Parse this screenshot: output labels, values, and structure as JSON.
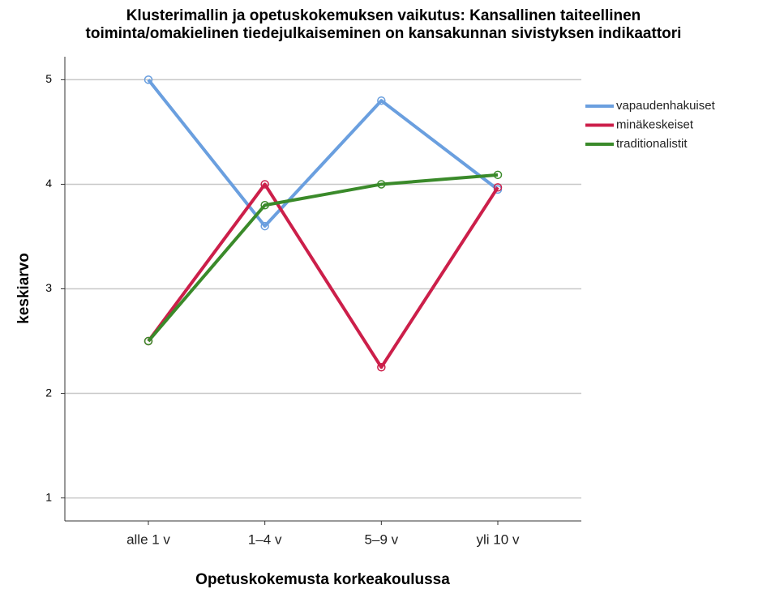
{
  "chart_data": {
    "type": "line",
    "title": [
      "Klusterimallin ja opetuskokemuksen vaikutus: Kansallinen taiteellinen",
      "toiminta/omakielinen tiedejulkaiseminen on kansakunnan sivistyksen indikaattori"
    ],
    "x_label": "Opetuskokemusta korkeakoulussa",
    "y_label": "keskiarvo",
    "categories": [
      "alle 1 v",
      "1–4 v",
      "5–9 v",
      "yli 10 v"
    ],
    "series": [
      {
        "name": "vapaudenhakuiset",
        "color": "#6a9fdf",
        "values": [
          5.0,
          3.6,
          4.8,
          3.95
        ]
      },
      {
        "name": "minäkeskeiset",
        "color": "#cc1f4a",
        "values": [
          2.5,
          4.0,
          2.25,
          3.97
        ]
      },
      {
        "name": "traditionalistit",
        "color": "#3a8a2a",
        "values": [
          2.5,
          3.8,
          4.0,
          4.09
        ]
      }
    ],
    "ylim": [
      0.78,
      5.22
    ],
    "yticks": [
      1,
      2,
      3,
      4,
      5
    ],
    "grid": true,
    "legend": "right"
  }
}
